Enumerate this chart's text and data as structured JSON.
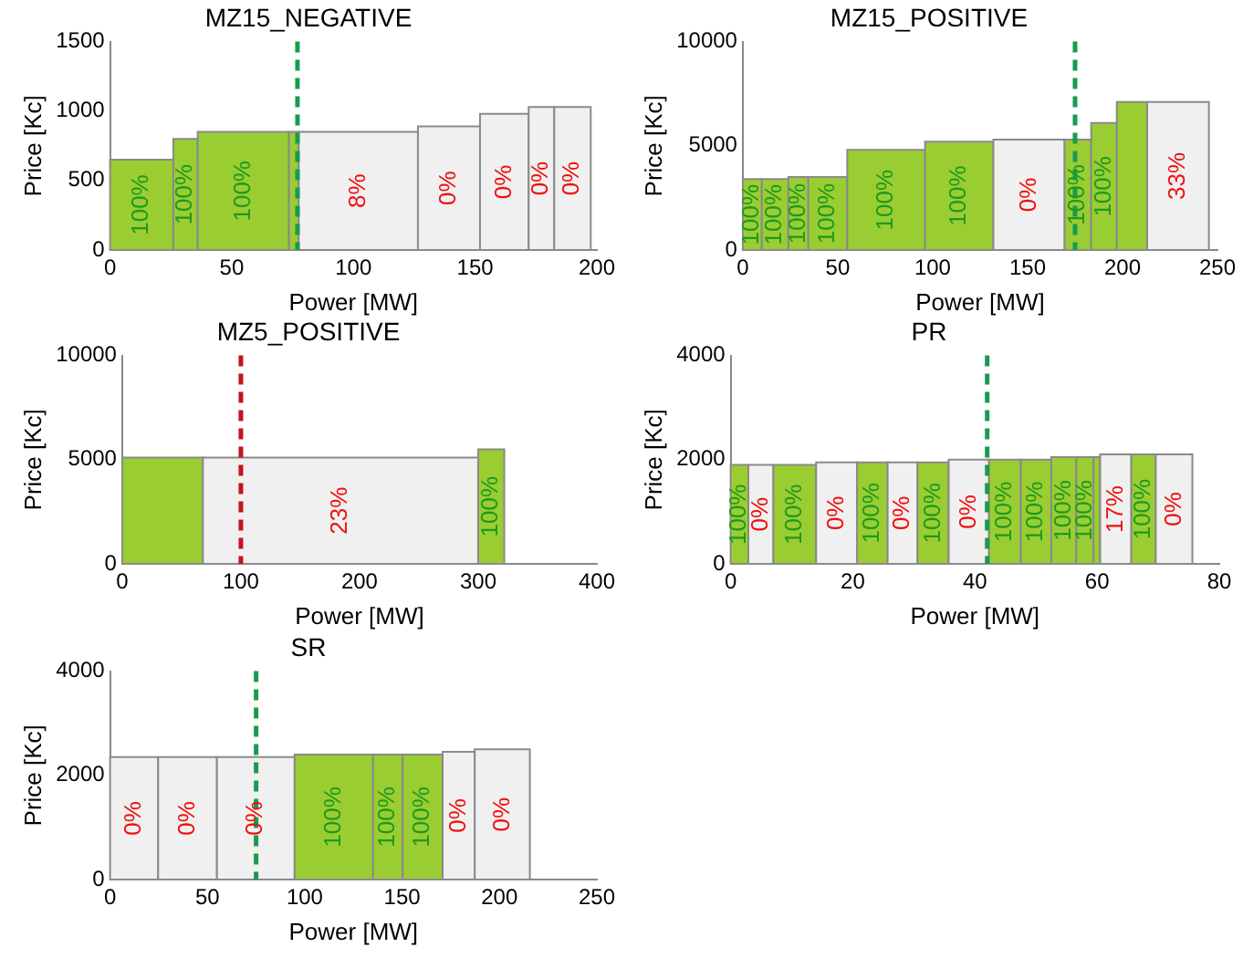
{
  "chart_data": [
    {
      "type": "histogram",
      "title": "MZ15_NEGATIVE",
      "xlabel": "Power [MW]",
      "ylabel": "Price [Kc]",
      "bins": [
        0,
        26,
        36,
        73.5,
        77.5,
        126.5,
        152,
        172,
        182.5,
        197.5
      ],
      "values": [
        650,
        800,
        850,
        850,
        850,
        890,
        980,
        1030,
        1030
      ],
      "colors": [
        "#9acd32",
        "#9acd32",
        "#9acd32",
        "#9acd32",
        "#f0f0f0",
        "#f0f0f0",
        "#f0f0f0",
        "#f0f0f0",
        "#f0f0f0"
      ],
      "annotations": [
        {
          "text": "100%",
          "x": 13,
          "y": 650
        },
        {
          "text": "100%",
          "x": 31,
          "y": 800
        },
        {
          "text": "100%",
          "x": 54.75,
          "y": 850
        },
        {
          "text": "8%",
          "x": 102,
          "y": 850
        },
        {
          "text": "0%",
          "x": 139.25,
          "y": 890
        },
        {
          "text": "0%",
          "x": 162,
          "y": 980
        },
        {
          "text": "0%",
          "x": 177.25,
          "y": 1030
        },
        {
          "text": "0%",
          "x": 190,
          "y": 1030
        }
      ],
      "xlim": [
        0,
        200
      ],
      "xticks": [
        0,
        50,
        100,
        150,
        200
      ],
      "ylim": [
        0,
        1500
      ],
      "yticks": [
        0,
        500,
        1000,
        1500
      ],
      "ref_lines": [
        {
          "axis": "x",
          "value": 77,
          "color": "#1a9a50",
          "line_style": "dashed"
        }
      ]
    },
    {
      "type": "histogram",
      "title": "MZ15_POSITIVE",
      "xlabel": "Power [MW]",
      "ylabel": "Price [Kc]",
      "bins": [
        0,
        10,
        24,
        34.5,
        55,
        96,
        132,
        169.5,
        183.5,
        197,
        213,
        245.5
      ],
      "values": [
        3400,
        3400,
        3500,
        3500,
        4800,
        5200,
        5300,
        5300,
        6100,
        7100,
        7100
      ],
      "colors": [
        "#9acd32",
        "#9acd32",
        "#9acd32",
        "#9acd32",
        "#9acd32",
        "#9acd32",
        "#f0f0f0",
        "#9acd32",
        "#9acd32",
        "#9acd32",
        "#f0f0f0"
      ],
      "annotations": [
        {
          "text": "100%",
          "x": 5,
          "y": 3400
        },
        {
          "text": "100%",
          "x": 17,
          "y": 3400
        },
        {
          "text": "100%",
          "x": 29.25,
          "y": 3500
        },
        {
          "text": "100%",
          "x": 44.75,
          "y": 3500
        },
        {
          "text": "100%",
          "x": 75.5,
          "y": 4800
        },
        {
          "text": "100%",
          "x": 114,
          "y": 5200
        },
        {
          "text": "0%",
          "x": 150.75,
          "y": 5300
        },
        {
          "text": "100%",
          "x": 176.5,
          "y": 5300
        },
        {
          "text": "100%",
          "x": 190.25,
          "y": 6100
        },
        {
          "text": "33%",
          "x": 229.25,
          "y": 7100
        }
      ],
      "xlim": [
        0,
        250
      ],
      "xticks": [
        0,
        50,
        100,
        150,
        200,
        250
      ],
      "ylim": [
        0,
        10000
      ],
      "yticks": [
        0,
        5000,
        10000
      ],
      "ref_lines": [
        {
          "axis": "x",
          "value": 175,
          "color": "#1a9a50",
          "line_style": "dashed"
        }
      ]
    },
    {
      "type": "histogram",
      "title": "MZ5_POSITIVE",
      "xlabel": "Power [MW]",
      "ylabel": "Price [Kc]",
      "bins": [
        0,
        68,
        300,
        322
      ],
      "values": [
        5100,
        5100,
        5500
      ],
      "colors": [
        "#9acd32",
        "#f0f0f0",
        "#9acd32"
      ],
      "annotations": [
        {
          "text": "23%",
          "x": 184,
          "y": 5100
        },
        {
          "text": "100%",
          "x": 311,
          "y": 5500
        }
      ],
      "xlim": [
        0,
        400
      ],
      "xticks": [
        0,
        100,
        200,
        300,
        400
      ],
      "ylim": [
        0,
        10000
      ],
      "yticks": [
        0,
        5000,
        10000
      ],
      "ref_lines": [
        {
          "axis": "x",
          "value": 100,
          "color": "#c0141e",
          "line_style": "dashed"
        }
      ]
    },
    {
      "type": "histogram",
      "title": "PR",
      "xlabel": "Power [MW]",
      "ylabel": "Price [Kc]",
      "bins": [
        0,
        2.9,
        7,
        14,
        20.7,
        25.7,
        30.6,
        35.7,
        42.3,
        47.5,
        52.5,
        56.6,
        59.4,
        60.5,
        65.6,
        69.6,
        75.6
      ],
      "values": [
        1900,
        1900,
        1900,
        1950,
        1950,
        1950,
        1950,
        2000,
        2000,
        2000,
        2050,
        2050,
        2050,
        2100,
        2100,
        2100
      ],
      "colors": [
        "#9acd32",
        "#f0f0f0",
        "#9acd32",
        "#f0f0f0",
        "#9acd32",
        "#f0f0f0",
        "#9acd32",
        "#f0f0f0",
        "#9acd32",
        "#9acd32",
        "#9acd32",
        "#9acd32",
        "#9acd32",
        "#f0f0f0",
        "#9acd32",
        "#f0f0f0"
      ],
      "annotations": [
        {
          "text": "100%",
          "x": 1.45,
          "y": 1900
        },
        {
          "text": "0%",
          "x": 4.95,
          "y": 1900
        },
        {
          "text": "100%",
          "x": 10.5,
          "y": 1900
        },
        {
          "text": "0%",
          "x": 17.35,
          "y": 1950
        },
        {
          "text": "100%",
          "x": 23.2,
          "y": 1950
        },
        {
          "text": "0%",
          "x": 28.15,
          "y": 1950
        },
        {
          "text": "100%",
          "x": 33.15,
          "y": 1950
        },
        {
          "text": "0%",
          "x": 39,
          "y": 2000
        },
        {
          "text": "100%",
          "x": 44.9,
          "y": 2000
        },
        {
          "text": "100%",
          "x": 50,
          "y": 2000
        },
        {
          "text": "100%",
          "x": 54.55,
          "y": 2050
        },
        {
          "text": "100%",
          "x": 58,
          "y": 2050
        },
        {
          "text": "17%",
          "x": 63.05,
          "y": 2100
        },
        {
          "text": "100%",
          "x": 67.6,
          "y": 2100
        },
        {
          "text": "0%",
          "x": 72.6,
          "y": 2100
        }
      ],
      "xlim": [
        0,
        80
      ],
      "xticks": [
        0,
        20,
        40,
        60,
        80
      ],
      "ylim": [
        0,
        4000
      ],
      "yticks": [
        0,
        2000,
        4000
      ],
      "ref_lines": [
        {
          "axis": "x",
          "value": 42,
          "color": "#1a9a50",
          "line_style": "dashed"
        }
      ]
    },
    {
      "type": "histogram",
      "title": "SR",
      "xlabel": "Power [MW]",
      "ylabel": "Price [Kc]",
      "bins": [
        0,
        24.7,
        54.9,
        94.8,
        135.1,
        150.3,
        170.8,
        187.3,
        215.6
      ],
      "values": [
        2350,
        2350,
        2350,
        2400,
        2400,
        2400,
        2450,
        2500
      ],
      "colors": [
        "#f0f0f0",
        "#f0f0f0",
        "#f0f0f0",
        "#9acd32",
        "#9acd32",
        "#9acd32",
        "#f0f0f0",
        "#f0f0f0"
      ],
      "annotations": [
        {
          "text": "0%",
          "x": 12.35,
          "y": 2350
        },
        {
          "text": "0%",
          "x": 39.8,
          "y": 2350
        },
        {
          "text": "0%",
          "x": 74.85,
          "y": 2350
        },
        {
          "text": "100%",
          "x": 114.95,
          "y": 2400
        },
        {
          "text": "100%",
          "x": 142.7,
          "y": 2400
        },
        {
          "text": "100%",
          "x": 160.55,
          "y": 2400
        },
        {
          "text": "0%",
          "x": 179.05,
          "y": 2450
        },
        {
          "text": "0%",
          "x": 201.45,
          "y": 2500
        }
      ],
      "xlim": [
        0,
        250
      ],
      "xticks": [
        0,
        50,
        100,
        150,
        200,
        250
      ],
      "ylim": [
        0,
        4000
      ],
      "yticks": [
        0,
        2000,
        4000
      ],
      "ref_lines": [
        {
          "axis": "x",
          "value": 75,
          "color": "#1a9a50",
          "line_style": "dashed"
        }
      ]
    }
  ]
}
